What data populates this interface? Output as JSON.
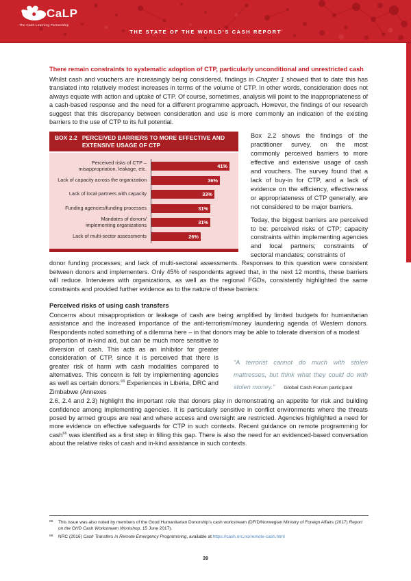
{
  "header": {
    "logo_name": "CaLP",
    "logo_tagline": "The Cash Learning Partnership",
    "title": "THE STATE OF THE WORLD'S CASH REPORT"
  },
  "colors": {
    "brand_red": "#c8232a",
    "box_dark_red": "#a81e23",
    "bar_red": "#b02126",
    "chart_background_pink": "#f8d9da",
    "heading_red": "#c32127",
    "quote_teal_gray": "#7f96a2",
    "link_blue": "#4a86c5"
  },
  "intro": {
    "heading": "There remain constraints to systematic adoption of CTP, particularly unconditional and unrestricted cash",
    "para_pre": "Whilst cash and vouchers are increasingly being considered, findings in ",
    "para_italic": "Chapter 1",
    "para_post": " showed that to date this has translated into relatively modest increases in terms of the volume of CTP. In other words, consideration does not always equate with action and uptake of CTP. Of course, sometimes, analysis will point to the inappropriateness of a cash-based response and the need for a different programme approach. However, the findings of our research suggest that this discrepancy between consideration and use is more commonly an indication of the existing barriers to the use of CTP to its full potential."
  },
  "box": {
    "label": "BOX 2.2",
    "title": "PERCEIVED BARRIERS TO MORE EFFECTIVE AND EXTENSIVE USAGE OF CTP"
  },
  "chart_data": {
    "type": "bar",
    "orientation": "horizontal",
    "title": "PERCEIVED BARRIERS TO MORE EFFECTIVE AND EXTENSIVE USAGE OF CTP",
    "categories": [
      "Perceived risks of CTP –\nmisappropriation, leakage, etc.",
      "Lack of capacity across the organization",
      "Lack of local partners with capacity",
      "Funding agencies/funding processes",
      "Mandates of donors/\nimplementing organizations",
      "Lack of multi-sector assessments"
    ],
    "values": [
      41,
      36,
      33,
      31,
      31,
      26
    ],
    "value_labels": [
      "41%",
      "36%",
      "33%",
      "31%",
      "31%",
      "26%"
    ],
    "xlim": [
      0,
      45
    ],
    "grid": false,
    "legend": false,
    "bar_color": "#b02126",
    "plot_background": "#f8d9da"
  },
  "box_side": {
    "para1": "Box 2.2 shows the findings of the practitioner survey, on the most commonly perceived barriers to more effective and extensive usage of cash and vouchers. The survey found that a lack of buy-in for CTP, and a lack of evidence on the efficiency, effectiveness or appropriateness of CTP generally, are not considered to be major barriers.",
    "para2": "Today, the biggest barriers are perceived to be: perceived risks of CTP; capacity constraints within implementing agencies and local partners; constraints of sectoral mandates; constraints of"
  },
  "continuation": "donor funding processes; and lack of multi-sectoral assessments. Responses to this question were consistent between donors and implementers. Only 45% of respondents agreed that, in the next 12 months, these barriers will reduce. Interviews with organizations, as well as the regional FGDs, consistently highlighted the same constraints and provided further evidence as to the nature of these barriers:",
  "risk_section": {
    "heading": "Perceived risks of using cash transfers",
    "para1": "Concerns about misappropriation or leakage of cash are being amplified by limited budgets for humanitarian assistance and the increased importance of the anti-terrorism/money laundering agenda of Western donors. Respondents noted something of a dilemma here – in that donors may be able to tolerate diversion of a modest",
    "left_col_a": "proportion of in-kind aid, but can be much more sensitive to diversion of cash. This acts as an inhibitor for greater consideration of CTP, since it is perceived that there is greater risk of harm with cash modalities compared to alternatives. This concern is felt by implementing agencies as well as certain donors.",
    "left_col_sup": "65",
    "left_col_b": " Experiences in Liberia, DRC and Zimbabwe (Annexes",
    "quote_text": "“A terrorist cannot do much with stolen mattresses, but think what they could do with stolen money.”",
    "quote_attribution": "Global Cash Forum participant",
    "para2_a": "2.6, 2.4 and 2.3) highlight the important role that donors play in demonstrating an appetite for risk and building confidence among implementing agencies. It is particularly sensitive in conflict environments where the threats posed by armed groups are real and where access and oversight are restricted. Agencies highlighted a need for more evidence on effective safeguards for CTP in such contexts. Recent guidance on remote programming for cash",
    "para2_sup": "66",
    "para2_b": " was identified as a first step in filling this gap. There is also the need for an evidenced-based conversation about the relative risks of cash and in-kind assistance in such contexts."
  },
  "footnotes": [
    {
      "num": "65",
      "pre": "This issue was also noted by members of the Good Humanitarian Donorship's cash workstream (DFID/Norwegian Ministry of Foreign Affairs (2017) ",
      "italic": "Report on the GHD Cash Workstream Workshop",
      "post": ", 15 June 2017)."
    },
    {
      "num": "66",
      "pre": "NRC (2016) ",
      "italic": "Cash Transfers in Remote Emergency Programming",
      "post": ", available at ",
      "link": "https://cash.nrc.no/remote-cash.html"
    }
  ],
  "page_number": "39"
}
